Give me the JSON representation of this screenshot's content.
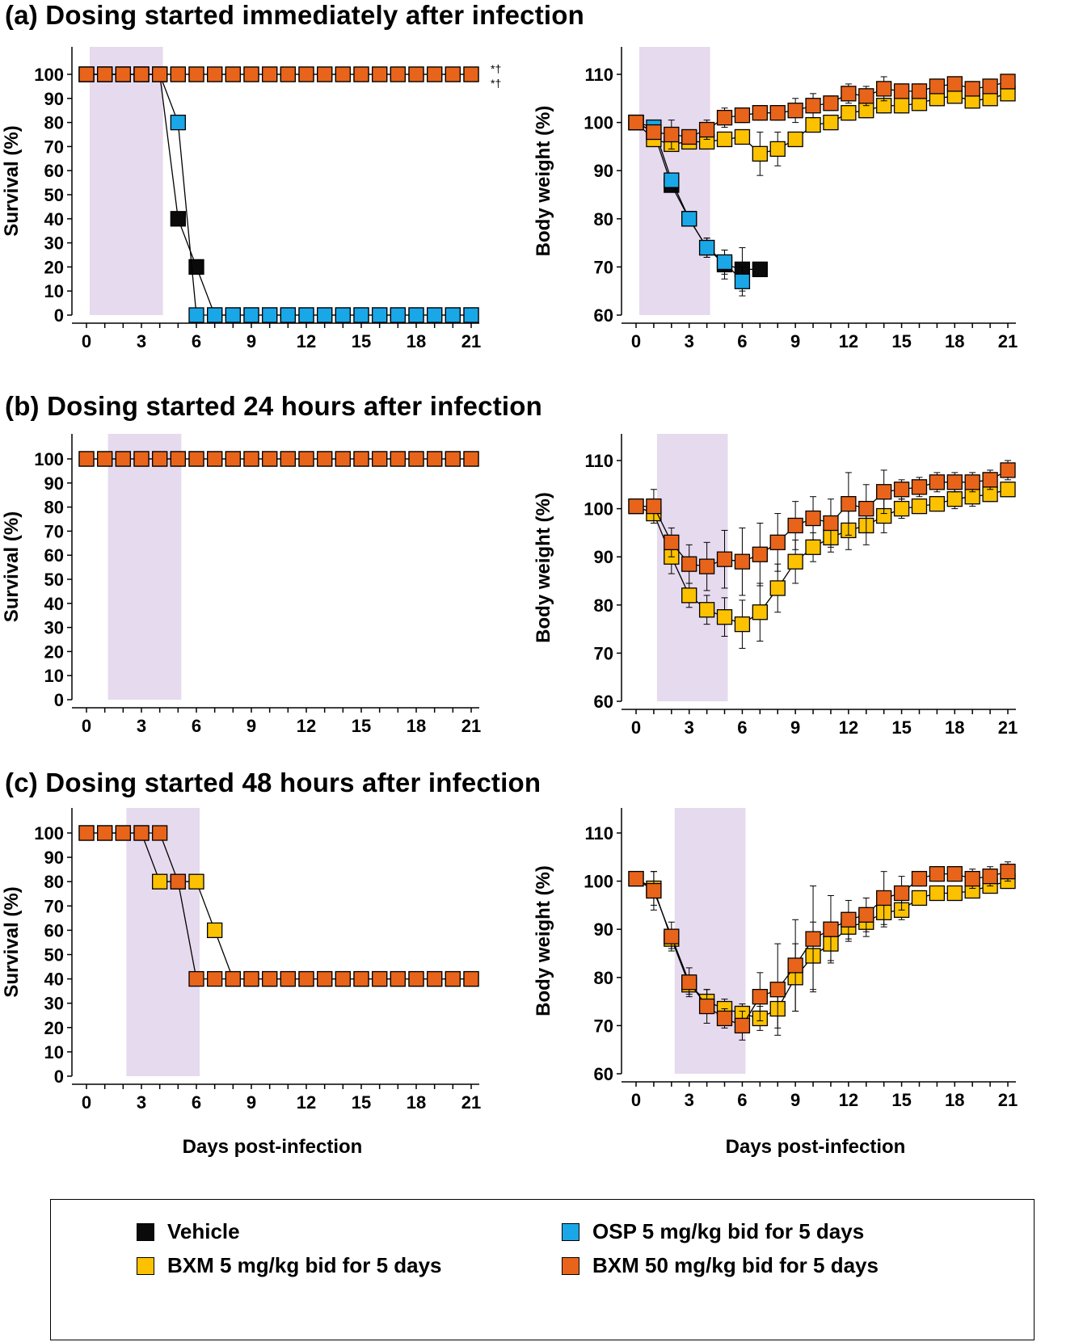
{
  "panels": [
    {
      "label": "(a) Dosing started immediately after infection"
    },
    {
      "label": "(b) Dosing started 24 hours after infection"
    },
    {
      "label": "(c) Dosing started 48 hours after infection"
    }
  ],
  "legend": {
    "items": [
      {
        "name": "Vehicle",
        "color": "#0a0a0a"
      },
      {
        "name": "OSP 5 mg/kg bid for 5 days",
        "color": "#1aa7e8"
      },
      {
        "name": "BXM 5 mg/kg bid for 5 days",
        "color": "#fcc200"
      },
      {
        "name": "BXM 50 mg/kg bid for 5 days",
        "color": "#e8641a"
      }
    ]
  },
  "chart_data": [
    {
      "type": "line",
      "panel": "a",
      "title": "Survival",
      "xlabel": "",
      "ylabel": "Survival (%)",
      "xlim": [
        0,
        21
      ],
      "ylim": [
        0,
        100
      ],
      "xticks": [
        0,
        3,
        6,
        9,
        12,
        15,
        18,
        21
      ],
      "yticks": [
        0,
        10,
        20,
        30,
        40,
        50,
        60,
        70,
        80,
        90,
        100
      ],
      "dosing_window": [
        0,
        4
      ],
      "annotations": [
        "*†",
        "*†"
      ],
      "series": [
        {
          "name": "Vehicle",
          "color": "#0a0a0a",
          "x": [
            0,
            1,
            2,
            3,
            4,
            5,
            6,
            7,
            8,
            9,
            10,
            11,
            12,
            13,
            14,
            15,
            16,
            17,
            18,
            19,
            20,
            21
          ],
          "y": [
            100,
            100,
            100,
            100,
            100,
            40,
            20,
            0,
            0,
            0,
            0,
            0,
            0,
            0,
            0,
            0,
            0,
            0,
            0,
            0,
            0,
            0
          ]
        },
        {
          "name": "OSP 5 mg/kg bid for 5 days",
          "color": "#1aa7e8",
          "x": [
            0,
            1,
            2,
            3,
            4,
            5,
            6,
            7,
            8,
            9,
            10,
            11,
            12,
            13,
            14,
            15,
            16,
            17,
            18,
            19,
            20,
            21
          ],
          "y": [
            100,
            100,
            100,
            100,
            100,
            80,
            0,
            0,
            0,
            0,
            0,
            0,
            0,
            0,
            0,
            0,
            0,
            0,
            0,
            0,
            0,
            0
          ]
        },
        {
          "name": "BXM 5 mg/kg bid for 5 days",
          "color": "#fcc200",
          "x": [
            0,
            1,
            2,
            3,
            4,
            5,
            6,
            7,
            8,
            9,
            10,
            11,
            12,
            13,
            14,
            15,
            16,
            17,
            18,
            19,
            20,
            21
          ],
          "y": [
            100,
            100,
            100,
            100,
            100,
            100,
            100,
            100,
            100,
            100,
            100,
            100,
            100,
            100,
            100,
            100,
            100,
            100,
            100,
            100,
            100,
            100
          ]
        },
        {
          "name": "BXM 50 mg/kg bid for 5 days",
          "color": "#e8641a",
          "x": [
            0,
            1,
            2,
            3,
            4,
            5,
            6,
            7,
            8,
            9,
            10,
            11,
            12,
            13,
            14,
            15,
            16,
            17,
            18,
            19,
            20,
            21
          ],
          "y": [
            100,
            100,
            100,
            100,
            100,
            100,
            100,
            100,
            100,
            100,
            100,
            100,
            100,
            100,
            100,
            100,
            100,
            100,
            100,
            100,
            100,
            100
          ]
        }
      ]
    },
    {
      "type": "line",
      "panel": "a",
      "title": "Body weight",
      "xlabel": "",
      "ylabel": "Body weight (%)",
      "xlim": [
        0,
        21
      ],
      "ylim": [
        60,
        110
      ],
      "xticks": [
        0,
        3,
        6,
        9,
        12,
        15,
        18,
        21
      ],
      "yticks": [
        60,
        70,
        80,
        90,
        100,
        110
      ],
      "dosing_window": [
        0,
        4
      ],
      "series": [
        {
          "name": "Vehicle",
          "color": "#0a0a0a",
          "x": [
            0,
            1,
            2,
            3,
            4,
            5,
            6,
            7
          ],
          "y": [
            100,
            98,
            87,
            80,
            74,
            70.5,
            69.5,
            69.5
          ],
          "err": [
            0,
            1,
            1.5,
            1.5,
            2,
            3,
            4.5,
            0
          ]
        },
        {
          "name": "OSP 5 mg/kg bid for 5 days",
          "color": "#1aa7e8",
          "x": [
            0,
            1,
            2,
            3,
            4,
            5,
            6
          ],
          "y": [
            100,
            99,
            88,
            80,
            74,
            71,
            67
          ],
          "err": [
            0,
            1,
            1.5,
            1.5,
            2,
            2.5,
            3
          ]
        },
        {
          "name": "BXM 5 mg/kg bid for 5 days",
          "color": "#fcc200",
          "x": [
            0,
            1,
            2,
            3,
            4,
            5,
            6,
            7,
            8,
            9,
            10,
            11,
            12,
            13,
            14,
            15,
            16,
            17,
            18,
            19,
            20,
            21
          ],
          "y": [
            100,
            96.5,
            95.5,
            96,
            96,
            96.5,
            97,
            93.5,
            94.5,
            96.5,
            99.5,
            100,
            102,
            102.5,
            103.5,
            103.5,
            104,
            105,
            105.5,
            104.5,
            105,
            106
          ],
          "err": [
            0,
            1.5,
            1.5,
            1.5,
            1.5,
            1.5,
            1.5,
            4.5,
            3.5,
            1.5,
            1.5,
            1.5,
            1.5,
            1.5,
            1.5,
            1.5,
            1.5,
            1.5,
            1.5,
            1.5,
            1.5,
            1.5
          ]
        },
        {
          "name": "BXM 50 mg/kg bid for 5 days",
          "color": "#e8641a",
          "x": [
            0,
            1,
            2,
            3,
            4,
            5,
            6,
            7,
            8,
            9,
            10,
            11,
            12,
            13,
            14,
            15,
            16,
            17,
            18,
            19,
            20,
            21
          ],
          "y": [
            100,
            98,
            97.5,
            97,
            98.5,
            101,
            101.5,
            102,
            102,
            102.5,
            103.5,
            104,
            106,
            105.5,
            107,
            106.5,
            106.5,
            107.5,
            108,
            107,
            107.5,
            108.5
          ],
          "err": [
            0,
            1.5,
            3,
            1.5,
            2,
            2,
            1.5,
            1.5,
            1.5,
            2.5,
            2.5,
            1.5,
            2,
            2,
            2.5,
            1.5,
            1.5,
            1.5,
            1.5,
            1.5,
            1.5,
            1.5
          ]
        }
      ]
    },
    {
      "type": "line",
      "panel": "b",
      "title": "Survival",
      "xlabel": "",
      "ylabel": "Survival (%)",
      "xlim": [
        0,
        21
      ],
      "ylim": [
        0,
        100
      ],
      "xticks": [
        0,
        3,
        6,
        9,
        12,
        15,
        18,
        21
      ],
      "yticks": [
        0,
        10,
        20,
        30,
        40,
        50,
        60,
        70,
        80,
        90,
        100
      ],
      "dosing_window": [
        1,
        5
      ],
      "series": [
        {
          "name": "BXM 5 mg/kg bid for 5 days",
          "color": "#fcc200",
          "x": [
            0,
            1,
            2,
            3,
            4,
            5,
            6,
            7,
            8,
            9,
            10,
            11,
            12,
            13,
            14,
            15,
            16,
            17,
            18,
            19,
            20,
            21
          ],
          "y": [
            100,
            100,
            100,
            100,
            100,
            100,
            100,
            100,
            100,
            100,
            100,
            100,
            100,
            100,
            100,
            100,
            100,
            100,
            100,
            100,
            100,
            100
          ]
        },
        {
          "name": "BXM 50 mg/kg bid for 5 days",
          "color": "#e8641a",
          "x": [
            0,
            1,
            2,
            3,
            4,
            5,
            6,
            7,
            8,
            9,
            10,
            11,
            12,
            13,
            14,
            15,
            16,
            17,
            18,
            19,
            20,
            21
          ],
          "y": [
            100,
            100,
            100,
            100,
            100,
            100,
            100,
            100,
            100,
            100,
            100,
            100,
            100,
            100,
            100,
            100,
            100,
            100,
            100,
            100,
            100,
            100
          ]
        }
      ]
    },
    {
      "type": "line",
      "panel": "b",
      "title": "Body weight",
      "xlabel": "",
      "ylabel": "Body weight (%)",
      "xlim": [
        0,
        21
      ],
      "ylim": [
        60,
        110
      ],
      "xticks": [
        0,
        3,
        6,
        9,
        12,
        15,
        18,
        21
      ],
      "yticks": [
        60,
        70,
        80,
        90,
        100,
        110
      ],
      "dosing_window": [
        1,
        5
      ],
      "series": [
        {
          "name": "BXM 5 mg/kg bid for 5 days",
          "color": "#fcc200",
          "x": [
            0,
            1,
            2,
            3,
            4,
            5,
            6,
            7,
            8,
            9,
            10,
            11,
            12,
            13,
            14,
            15,
            16,
            17,
            18,
            19,
            20,
            21
          ],
          "y": [
            100.5,
            99,
            90,
            82,
            79,
            77.5,
            76,
            78.5,
            83.5,
            89,
            92,
            94,
            95.5,
            96.5,
            98.5,
            100,
            100.5,
            101,
            102,
            102.5,
            103,
            104
          ],
          "err": [
            0,
            1.5,
            3.5,
            2.5,
            3,
            4,
            5,
            6,
            5,
            4.5,
            3,
            3,
            4,
            4,
            3.5,
            2,
            1.5,
            1.5,
            2,
            2,
            1.5,
            1.5
          ]
        },
        {
          "name": "BXM 50 mg/kg bid for 5 days",
          "color": "#e8641a",
          "x": [
            0,
            1,
            2,
            3,
            4,
            5,
            6,
            7,
            8,
            9,
            10,
            11,
            12,
            13,
            14,
            15,
            16,
            17,
            18,
            19,
            20,
            21
          ],
          "y": [
            100.5,
            100.5,
            93,
            88.5,
            88,
            89.5,
            89,
            90.5,
            93,
            96.5,
            98,
            97,
            101,
            100,
            103.5,
            104,
            104.5,
            105.5,
            105.5,
            105.5,
            106,
            108
          ],
          "err": [
            0,
            3.5,
            3,
            4,
            5,
            6,
            7,
            6.5,
            6,
            5,
            4.5,
            5,
            6.5,
            5,
            4.5,
            2,
            2,
            2,
            2,
            2,
            2,
            2
          ]
        }
      ]
    },
    {
      "type": "line",
      "panel": "c",
      "title": "Survival",
      "xlabel": "Days post-infection",
      "ylabel": "Survival (%)",
      "xlim": [
        0,
        21
      ],
      "ylim": [
        0,
        100
      ],
      "xticks": [
        0,
        3,
        6,
        9,
        12,
        15,
        18,
        21
      ],
      "yticks": [
        0,
        10,
        20,
        30,
        40,
        50,
        60,
        70,
        80,
        90,
        100
      ],
      "dosing_window": [
        2,
        6
      ],
      "series": [
        {
          "name": "BXM 5 mg/kg bid for 5 days",
          "color": "#fcc200",
          "x": [
            0,
            1,
            2,
            3,
            4,
            5,
            6,
            7,
            8,
            9,
            10,
            11,
            12,
            13,
            14,
            15,
            16,
            17,
            18,
            19,
            20,
            21
          ],
          "y": [
            100,
            100,
            100,
            100,
            80,
            80,
            80,
            60,
            40,
            40,
            40,
            40,
            40,
            40,
            40,
            40,
            40,
            40,
            40,
            40,
            40,
            40
          ]
        },
        {
          "name": "BXM 50 mg/kg bid for 5 days",
          "color": "#e8641a",
          "x": [
            0,
            1,
            2,
            3,
            4,
            5,
            6,
            7,
            8,
            9,
            10,
            11,
            12,
            13,
            14,
            15,
            16,
            17,
            18,
            19,
            20,
            21
          ],
          "y": [
            100,
            100,
            100,
            100,
            100,
            80,
            40,
            40,
            40,
            40,
            40,
            40,
            40,
            40,
            40,
            40,
            40,
            40,
            40,
            40,
            40,
            40
          ]
        }
      ]
    },
    {
      "type": "line",
      "panel": "c",
      "title": "Body weight",
      "xlabel": "Days post-infection",
      "ylabel": "Body weight (%)",
      "xlim": [
        0,
        21
      ],
      "ylim": [
        60,
        110
      ],
      "xticks": [
        0,
        3,
        6,
        9,
        12,
        15,
        18,
        21
      ],
      "yticks": [
        60,
        70,
        80,
        90,
        100,
        110
      ],
      "dosing_window": [
        2,
        6
      ],
      "series": [
        {
          "name": "BXM 5 mg/kg bid for 5 days",
          "color": "#fcc200",
          "x": [
            0,
            1,
            2,
            3,
            4,
            5,
            6,
            7,
            8,
            9,
            10,
            11,
            12,
            13,
            14,
            15,
            16,
            17,
            18,
            19,
            20,
            21
          ],
          "y": [
            100.5,
            98.5,
            88,
            78.5,
            75,
            73.5,
            72.5,
            71.5,
            73.5,
            80,
            84.5,
            87,
            90.5,
            91.5,
            93.5,
            94,
            96.5,
            97.5,
            97.5,
            98,
            99,
            100
          ],
          "err": [
            0,
            3.5,
            2,
            2,
            2.5,
            2,
            2,
            2.5,
            4,
            7,
            7,
            3.5,
            3,
            3,
            3,
            2,
            1.5,
            1.5,
            1.5,
            1.5,
            1.5,
            1.5
          ]
        },
        {
          "name": "BXM 50 mg/kg bid for 5 days",
          "color": "#e8641a",
          "x": [
            0,
            1,
            2,
            3,
            4,
            5,
            6,
            7,
            8,
            9,
            10,
            11,
            12,
            13,
            14,
            15,
            16,
            17,
            18,
            19,
            20,
            21
          ],
          "y": [
            100.5,
            98,
            88.5,
            79,
            74,
            71.5,
            70,
            76,
            77.5,
            82.5,
            88,
            90,
            92,
            93,
            96.5,
            97.5,
            100.5,
            101.5,
            101.5,
            100.5,
            101,
            102
          ],
          "err": [
            0,
            4,
            3,
            3,
            3.5,
            2,
            3,
            5,
            9.5,
            9.5,
            11,
            7,
            4,
            3.5,
            5.5,
            3.5,
            1.5,
            1.5,
            1.5,
            2,
            2,
            2
          ]
        }
      ]
    }
  ]
}
